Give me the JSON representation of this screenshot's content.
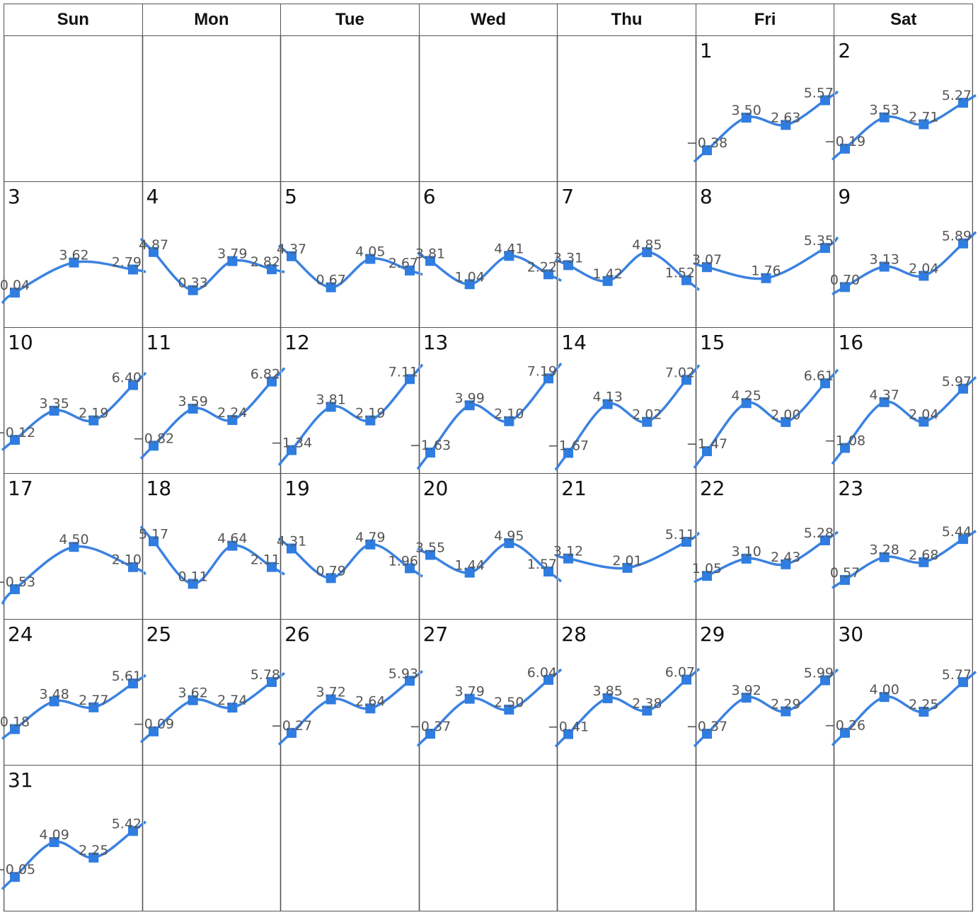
{
  "weekdays": [
    "Sun",
    "Mon",
    "Tue",
    "Wed",
    "Thu",
    "Fri",
    "Sat"
  ],
  "first_weekday_index": 5,
  "days_in_month": 31,
  "colors": {
    "line": "#3b82e0",
    "marker": "#2f7de1",
    "label": "#555555",
    "grid": "#555555"
  },
  "chart_data": {
    "type": "line",
    "description_of_layout": "calendar of per-day sparklines",
    "days": [
      {
        "day": 1,
        "values": [
          -0.38,
          3.5,
          2.63,
          5.57
        ]
      },
      {
        "day": 2,
        "values": [
          -0.19,
          3.53,
          2.71,
          5.27
        ]
      },
      {
        "day": 3,
        "values": [
          0.04,
          3.62,
          2.79
        ]
      },
      {
        "day": 4,
        "values": [
          4.87,
          0.33,
          3.79,
          2.82
        ]
      },
      {
        "day": 5,
        "values": [
          4.37,
          0.67,
          4.05,
          2.67
        ]
      },
      {
        "day": 6,
        "values": [
          3.81,
          1.04,
          4.41,
          2.22
        ]
      },
      {
        "day": 7,
        "values": [
          3.31,
          1.42,
          4.85,
          1.52
        ]
      },
      {
        "day": 8,
        "values": [
          3.07,
          1.76,
          5.35
        ]
      },
      {
        "day": 9,
        "values": [
          0.7,
          3.13,
          2.04,
          5.89
        ]
      },
      {
        "day": 10,
        "values": [
          -0.12,
          3.35,
          2.19,
          6.4
        ]
      },
      {
        "day": 11,
        "values": [
          -0.82,
          3.59,
          2.24,
          6.82
        ]
      },
      {
        "day": 12,
        "values": [
          -1.34,
          3.81,
          2.19,
          7.11
        ]
      },
      {
        "day": 13,
        "values": [
          -1.63,
          3.99,
          2.1,
          7.19
        ]
      },
      {
        "day": 14,
        "values": [
          -1.67,
          4.13,
          2.02,
          7.02
        ]
      },
      {
        "day": 15,
        "values": [
          -1.47,
          4.25,
          2.0,
          6.61
        ]
      },
      {
        "day": 16,
        "values": [
          -1.08,
          4.37,
          2.04,
          5.97
        ]
      },
      {
        "day": 17,
        "values": [
          -0.53,
          4.5,
          2.1
        ]
      },
      {
        "day": 18,
        "values": [
          5.17,
          0.11,
          4.64,
          2.11
        ]
      },
      {
        "day": 19,
        "values": [
          4.31,
          0.79,
          4.79,
          1.96
        ]
      },
      {
        "day": 20,
        "values": [
          3.55,
          1.44,
          4.95,
          1.57
        ]
      },
      {
        "day": 21,
        "values": [
          3.12,
          2.01,
          5.11
        ]
      },
      {
        "day": 22,
        "values": [
          1.05,
          3.1,
          2.43,
          5.28
        ]
      },
      {
        "day": 23,
        "values": [
          0.57,
          3.28,
          2.68,
          5.44
        ]
      },
      {
        "day": 24,
        "values": [
          0.18,
          3.48,
          2.77,
          5.61
        ]
      },
      {
        "day": 25,
        "values": [
          -0.09,
          3.62,
          2.74,
          5.78
        ]
      },
      {
        "day": 26,
        "values": [
          -0.27,
          3.72,
          2.64,
          5.93
        ]
      },
      {
        "day": 27,
        "values": [
          -0.37,
          3.79,
          2.5,
          6.04
        ]
      },
      {
        "day": 28,
        "values": [
          -0.41,
          3.85,
          2.38,
          6.07
        ]
      },
      {
        "day": 29,
        "values": [
          -0.37,
          3.92,
          2.29,
          5.99
        ]
      },
      {
        "day": 30,
        "values": [
          -0.26,
          4.0,
          2.25,
          5.77
        ]
      },
      {
        "day": 31,
        "values": [
          -0.05,
          4.09,
          2.25,
          5.42
        ]
      }
    ]
  }
}
